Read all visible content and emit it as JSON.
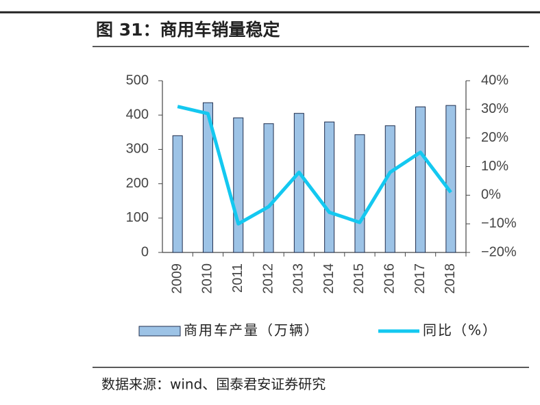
{
  "chart_data": {
    "type": "bar",
    "title": "图 31：商用车销量稳定",
    "source": "数据来源：wind、国泰君安证券研究",
    "categories": [
      "2009",
      "2010",
      "2011",
      "2012",
      "2013",
      "2014",
      "2015",
      "2016",
      "2017",
      "2018"
    ],
    "series": [
      {
        "name": "商用车产量（万辆）",
        "type": "bar",
        "color": "#9dc3e6",
        "values": [
          340,
          436,
          392,
          375,
          405,
          380,
          343,
          369,
          424,
          428
        ]
      },
      {
        "name": "同比（%）",
        "type": "line",
        "axis": "y2",
        "color": "#14c8f0",
        "values": [
          31,
          28.5,
          -10,
          -4,
          8,
          -6,
          -9.5,
          8,
          15,
          1
        ]
      }
    ],
    "ylim": [
      0,
      500
    ],
    "yticks": [
      0,
      100,
      200,
      300,
      400,
      500
    ],
    "y2lim": [
      -20,
      40
    ],
    "y2ticks": [
      {
        "value": -20,
        "label": "−20%"
      },
      {
        "value": -10,
        "label": "−10%"
      },
      {
        "value": 0,
        "label": "0%"
      },
      {
        "value": 10,
        "label": "10%"
      },
      {
        "value": 20,
        "label": "20%"
      },
      {
        "value": 30,
        "label": "30%"
      },
      {
        "value": 40,
        "label": "40%"
      }
    ],
    "grid": false
  }
}
